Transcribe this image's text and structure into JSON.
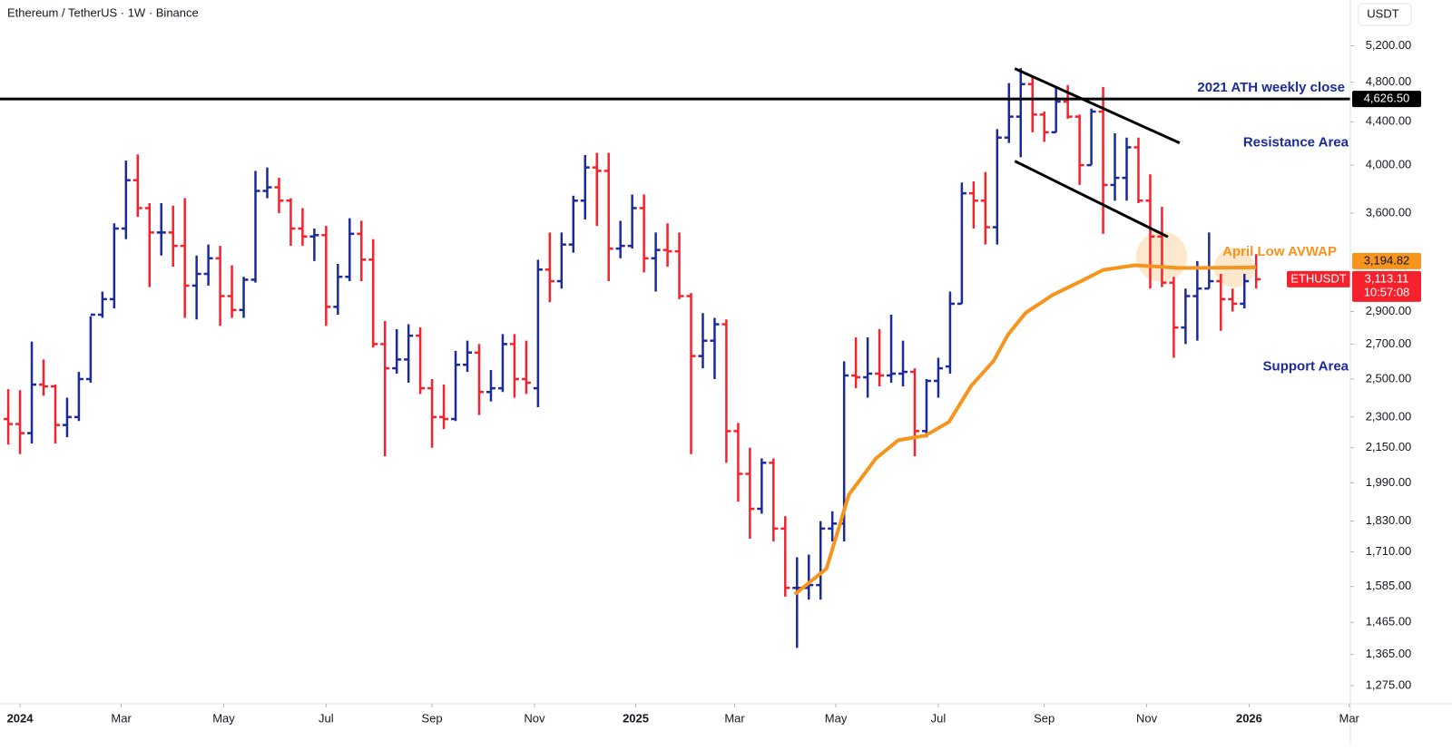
{
  "chart_data": {
    "type": "ohlc",
    "title": "Ethereum / TetherUS · 1W · Binance",
    "currency": "USDT",
    "log_scale": true,
    "grid": false,
    "xlim": [
      -1.7,
      113
    ],
    "xticks": [
      {
        "value": 0,
        "label": "2024"
      },
      {
        "value": 8.6,
        "label": "Mar"
      },
      {
        "value": 17.3,
        "label": "May"
      },
      {
        "value": 26,
        "label": "Jul"
      },
      {
        "value": 35,
        "label": "Sep"
      },
      {
        "value": 43.7,
        "label": "Nov"
      },
      {
        "value": 52.3,
        "label": "2025"
      },
      {
        "value": 60.7,
        "label": "Mar"
      },
      {
        "value": 69.3,
        "label": "May"
      },
      {
        "value": 78,
        "label": "Jul"
      },
      {
        "value": 87,
        "label": "Sep"
      },
      {
        "value": 95.7,
        "label": "Nov"
      },
      {
        "value": 104.4,
        "label": "2026"
      },
      {
        "value": 112.9,
        "label": "Mar"
      }
    ],
    "ylim": [
      1225,
      5750
    ],
    "yticks": [
      {
        "value": 5200,
        "label": "5,200.00"
      },
      {
        "value": 4800,
        "label": "4,800.00"
      },
      {
        "value": 4400,
        "label": "4,400.00"
      },
      {
        "value": 4000,
        "label": "4,000.00"
      },
      {
        "value": 3600,
        "label": "3,600.00"
      },
      {
        "value": 2900,
        "label": "2,900.00"
      },
      {
        "value": 2700,
        "label": "2,700.00"
      },
      {
        "value": 2500,
        "label": "2,500.00"
      },
      {
        "value": 2300,
        "label": "2,300.00"
      },
      {
        "value": 2150,
        "label": "2,150.00"
      },
      {
        "value": 1990,
        "label": "1,990.00"
      },
      {
        "value": 1830,
        "label": "1,830.00"
      },
      {
        "value": 1710,
        "label": "1,710.00"
      },
      {
        "value": 1585,
        "label": "1,585.00"
      },
      {
        "value": 1465,
        "label": "1,465.00"
      },
      {
        "value": 1365,
        "label": "1,365.00"
      },
      {
        "value": 1275,
        "label": "1,275.00"
      }
    ],
    "series": [
      {
        "name": "ETHUSDT",
        "up_color": "#1b2a9c",
        "down_color": "#f5222d",
        "last_label": "3,113.11",
        "countdown": "10:57:08",
        "x": [
          -1,
          0,
          1,
          2,
          3,
          4,
          5,
          6,
          7,
          8,
          9,
          10,
          11,
          12,
          13,
          14,
          15,
          16,
          17,
          18,
          19,
          20,
          21,
          22,
          23,
          24,
          25,
          26,
          27,
          28,
          29,
          30,
          31,
          32,
          33,
          34,
          35,
          36,
          37,
          38,
          39,
          40,
          41,
          42,
          43,
          44,
          45,
          46,
          47,
          48,
          49,
          50,
          51,
          52,
          53,
          54,
          55,
          56,
          57,
          58,
          59,
          60,
          61,
          62,
          63,
          64,
          65,
          66,
          67,
          68,
          69,
          70,
          71,
          72,
          73,
          74,
          75,
          76,
          77,
          78,
          79,
          80,
          81,
          82,
          83,
          84,
          85,
          86,
          87,
          88,
          89,
          90,
          91,
          92,
          93,
          94,
          95,
          96,
          97,
          98,
          99,
          100,
          101,
          102,
          103,
          104,
          105
        ],
        "values": [
          [
            2290,
            2445,
            2165,
            2265
          ],
          [
            2265,
            2440,
            2120,
            2220
          ],
          [
            2220,
            2715,
            2170,
            2470
          ],
          [
            2470,
            2610,
            2410,
            2460
          ],
          [
            2460,
            2470,
            2170,
            2260
          ],
          [
            2260,
            2400,
            2200,
            2300
          ],
          [
            2300,
            2540,
            2280,
            2500
          ],
          [
            2500,
            2870,
            2480,
            2880
          ],
          [
            2880,
            3030,
            2860,
            2980
          ],
          [
            2980,
            3520,
            2920,
            3480
          ],
          [
            3480,
            4040,
            3400,
            3870
          ],
          [
            3870,
            4095,
            3570,
            3640
          ],
          [
            3640,
            3680,
            3060,
            3450
          ],
          [
            3450,
            3680,
            3280,
            3450
          ],
          [
            3450,
            3660,
            3200,
            3350
          ],
          [
            3350,
            3720,
            2860,
            3070
          ],
          [
            3070,
            3280,
            2850,
            3150
          ],
          [
            3150,
            3360,
            3070,
            3260
          ],
          [
            3260,
            3350,
            2810,
            3000
          ],
          [
            3000,
            3210,
            2860,
            2910
          ],
          [
            2910,
            3130,
            2860,
            3110
          ],
          [
            3110,
            3950,
            3090,
            3780
          ],
          [
            3780,
            3980,
            3720,
            3810
          ],
          [
            3810,
            3890,
            3600,
            3700
          ],
          [
            3700,
            3720,
            3350,
            3480
          ],
          [
            3480,
            3640,
            3350,
            3420
          ],
          [
            3420,
            3480,
            3240,
            3430
          ],
          [
            3430,
            3500,
            2810,
            2930
          ],
          [
            2930,
            3220,
            2880,
            3130
          ],
          [
            3130,
            3560,
            3100,
            3440
          ],
          [
            3440,
            3540,
            3100,
            3250
          ],
          [
            3250,
            3400,
            2680,
            2700
          ],
          [
            2700,
            2840,
            2110,
            2560
          ],
          [
            2560,
            2790,
            2530,
            2610
          ],
          [
            2610,
            2820,
            2480,
            2750
          ],
          [
            2750,
            2800,
            2420,
            2450
          ],
          [
            2450,
            2500,
            2150,
            2300
          ],
          [
            2300,
            2470,
            2240,
            2290
          ],
          [
            2290,
            2660,
            2280,
            2580
          ],
          [
            2580,
            2720,
            2540,
            2650
          ],
          [
            2650,
            2700,
            2310,
            2430
          ],
          [
            2430,
            2550,
            2380,
            2450
          ],
          [
            2450,
            2760,
            2430,
            2700
          ],
          [
            2700,
            2760,
            2400,
            2500
          ],
          [
            2500,
            2720,
            2420,
            2480
          ],
          [
            2450,
            3250,
            2350,
            3180
          ],
          [
            3180,
            3450,
            2960,
            3100
          ],
          [
            3100,
            3450,
            3050,
            3360
          ],
          [
            3360,
            3740,
            3300,
            3700
          ],
          [
            3700,
            4090,
            3550,
            3980
          ],
          [
            3980,
            4110,
            3500,
            3950
          ],
          [
            3950,
            4110,
            3100,
            3330
          ],
          [
            3330,
            3540,
            3260,
            3350
          ],
          [
            3350,
            3750,
            3330,
            3640
          ],
          [
            3640,
            3750,
            3160,
            3260
          ],
          [
            3260,
            3450,
            3030,
            3320
          ],
          [
            3320,
            3520,
            3200,
            3310
          ],
          [
            3310,
            3450,
            2980,
            3000
          ],
          [
            3000,
            3020,
            2120,
            2630
          ],
          [
            2630,
            2890,
            2560,
            2720
          ],
          [
            2720,
            2860,
            2500,
            2820
          ],
          [
            2820,
            2850,
            2080,
            2230
          ],
          [
            2230,
            2270,
            1910,
            2030
          ],
          [
            2030,
            2150,
            1760,
            1880
          ],
          [
            1880,
            2100,
            1860,
            2080
          ],
          [
            2080,
            2100,
            1750,
            1800
          ],
          [
            1800,
            1850,
            1550,
            1580
          ],
          [
            1580,
            1690,
            1385,
            1580
          ],
          [
            1580,
            1700,
            1540,
            1590
          ],
          [
            1590,
            1830,
            1540,
            1800
          ],
          [
            1800,
            1870,
            1750,
            1820
          ],
          [
            1820,
            2600,
            1750,
            2520
          ],
          [
            2520,
            2740,
            2450,
            2510
          ],
          [
            2510,
            2740,
            2400,
            2530
          ],
          [
            2530,
            2790,
            2460,
            2520
          ],
          [
            2520,
            2880,
            2480,
            2530
          ],
          [
            2530,
            2720,
            2460,
            2540
          ],
          [
            2540,
            2560,
            2110,
            2230
          ],
          [
            2230,
            2500,
            2200,
            2490
          ],
          [
            2490,
            2620,
            2400,
            2560
          ],
          [
            2570,
            3030,
            2530,
            2950
          ],
          [
            2950,
            3850,
            2950,
            3760
          ],
          [
            3760,
            3860,
            3480,
            3700
          ],
          [
            3700,
            3940,
            3360,
            3490
          ],
          [
            3490,
            4330,
            3360,
            4250
          ],
          [
            4250,
            4790,
            4200,
            4450
          ],
          [
            4450,
            4950,
            4070,
            4780
          ],
          [
            4780,
            4850,
            4300,
            4470
          ],
          [
            4470,
            4500,
            4210,
            4300
          ],
          [
            4300,
            4760,
            4300,
            4600
          ],
          [
            4600,
            4770,
            4430,
            4450
          ],
          [
            4450,
            4470,
            3830,
            4000
          ],
          [
            4000,
            4530,
            4000,
            4500
          ],
          [
            4500,
            4750,
            3440,
            3830
          ],
          [
            3830,
            4290,
            3700,
            3890
          ],
          [
            3890,
            4250,
            3700,
            4160
          ],
          [
            4160,
            4250,
            3680,
            3700
          ],
          [
            3700,
            3920,
            3050,
            3420
          ],
          [
            3420,
            3650,
            3060,
            3090
          ],
          [
            3090,
            3130,
            2620,
            2800
          ],
          [
            2800,
            3050,
            2700,
            3000
          ],
          [
            3000,
            3240,
            2720,
            3050
          ],
          [
            3050,
            3450,
            3050,
            3100
          ],
          [
            3100,
            3150,
            2780,
            2980
          ],
          [
            2980,
            3050,
            2900,
            2950
          ],
          [
            2950,
            3150,
            2920,
            3100
          ],
          [
            3200,
            3290,
            3050,
            3113.11
          ]
        ]
      },
      {
        "name": "April Low AVWAP",
        "type": "line",
        "color": "#f7941d",
        "last_label": "3,194.82",
        "x": [
          65.8,
          68.5,
          70.4,
          72.7,
          74.6,
          76.9,
          78.9,
          80.8,
          82.7,
          83.9,
          85.4,
          87.7,
          90.1,
          92,
          94.7,
          98.5,
          105
        ],
        "values": [
          1558,
          1648,
          1939,
          2100,
          2186,
          2208,
          2275,
          2464,
          2602,
          2754,
          2890,
          3007,
          3099,
          3178,
          3210,
          3191,
          3194.82
        ]
      }
    ],
    "levels": [
      {
        "label": "2021 ATH weekly close",
        "value": 4626.5,
        "value_label": "4,626.50",
        "color": "#000000"
      }
    ],
    "zones": [
      {
        "label": "Resistance Area",
        "range": [
          3816,
          4626.5
        ],
        "color": "#eef0f3"
      },
      {
        "label": "Support Area",
        "range": [
          2505,
          2630
        ],
        "color": "#eef0f3"
      }
    ],
    "trendlines": [
      {
        "x": [
          84.5,
          98.5
        ],
        "values": [
          4946,
          4200
        ]
      },
      {
        "x": [
          84.5,
          97.5
        ],
        "values": [
          4036,
          3417
        ]
      }
    ]
  }
}
